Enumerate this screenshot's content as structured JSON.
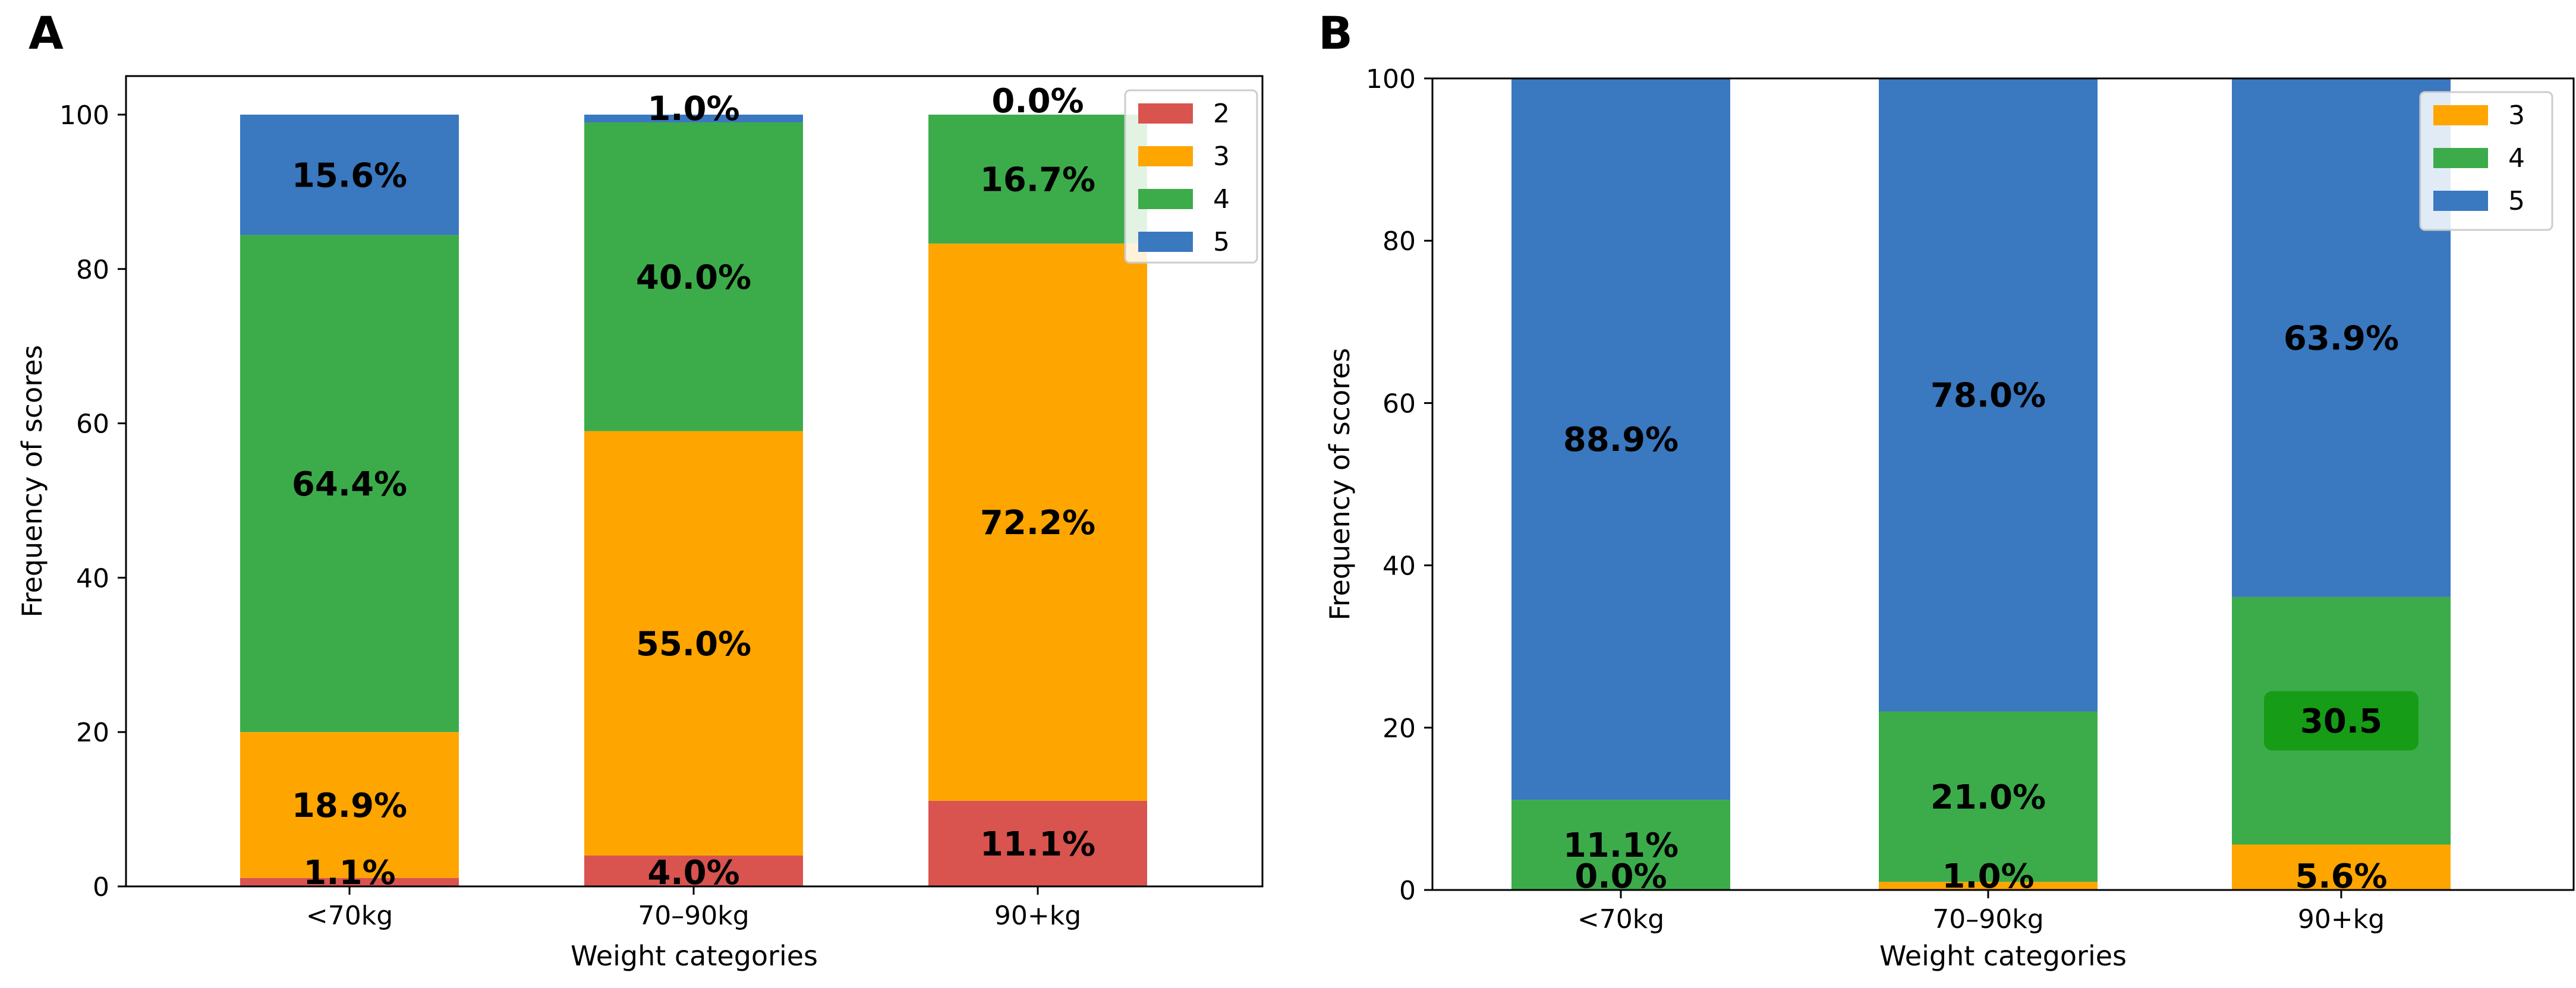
{
  "chart_data": [
    {
      "panel": "A",
      "type": "bar",
      "stacked": true,
      "categories": [
        "<70kg",
        "70–90kg",
        "90+kg"
      ],
      "xlabel": "Weight categories",
      "ylabel": "Frequency of scores",
      "ylim": [
        0,
        105
      ],
      "yticks": [
        0,
        20,
        40,
        60,
        80,
        100
      ],
      "legend_position": "top-right",
      "series": [
        {
          "name": "2",
          "color": "#d9534f",
          "values": [
            1.1,
            4.0,
            11.1
          ],
          "labels": [
            "1.1%",
            "4.0%",
            "11.1%"
          ]
        },
        {
          "name": "3",
          "color": "#ffa500",
          "values": [
            18.9,
            55.0,
            72.2
          ],
          "labels": [
            "18.9%",
            "55.0%",
            "72.2%"
          ]
        },
        {
          "name": "4",
          "color": "#3cac4a",
          "values": [
            64.4,
            40.0,
            16.7
          ],
          "labels": [
            "64.4%",
            "40.0%",
            "16.7%"
          ]
        },
        {
          "name": "5",
          "color": "#3a78c0",
          "values": [
            15.6,
            1.0,
            0.0
          ],
          "labels": [
            "15.6%",
            "1.0%",
            "0.0%"
          ]
        }
      ]
    },
    {
      "panel": "B",
      "type": "bar",
      "stacked": true,
      "categories": [
        "<70kg",
        "70–90kg",
        "90+kg"
      ],
      "xlabel": "Weight categories",
      "ylabel": "Frequency of scores",
      "ylim": [
        0,
        100
      ],
      "yticks": [
        0,
        20,
        40,
        60,
        80,
        100
      ],
      "legend_position": "top-right",
      "series": [
        {
          "name": "3",
          "color": "#ffa500",
          "values": [
            0.0,
            1.0,
            5.6
          ],
          "labels": [
            "0.0%",
            "1.0%",
            "5.6%"
          ]
        },
        {
          "name": "4",
          "color": "#3cac4a",
          "values": [
            11.1,
            21.0,
            30.5
          ],
          "labels": [
            "11.1%",
            "21.0%",
            "30.5"
          ]
        },
        {
          "name": "5",
          "color": "#3a78c0",
          "values": [
            88.9,
            78.0,
            63.9
          ],
          "labels": [
            "88.9%",
            "78.0%",
            "63.9%"
          ]
        }
      ],
      "highlight": {
        "series": "4",
        "category": "90+kg",
        "color": "#169c16"
      }
    }
  ]
}
